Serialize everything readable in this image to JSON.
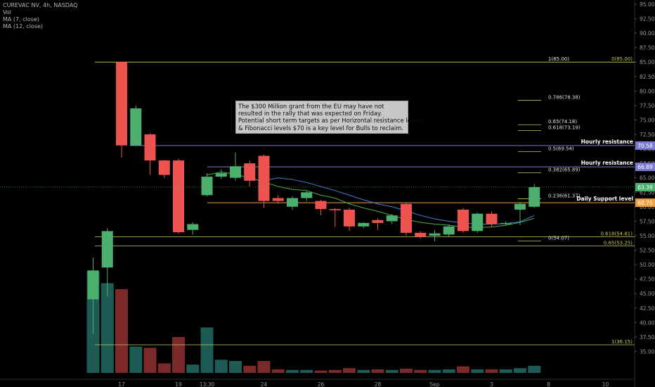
{
  "header": {
    "symbol_line": "CUREVAC NV, 4h, NASDAQ",
    "indicators": [
      "Vol",
      "MA (7, close)",
      "MA (12, close)"
    ]
  },
  "annotation": {
    "lines": [
      "The $300 Million grant from the EU may have not",
      "resulted in the rally that was expected on Friday.",
      "Potential short term targets as per Horizontal resistance levels",
      "& Fibonacci levels $70 is a key level for Bulls to reclaim."
    ]
  },
  "colors": {
    "up": "#4caf6e",
    "down": "#ef5350",
    "fib": "#c8c855",
    "resistance": "#7b7bd6",
    "support": "#f0a040",
    "ma7": "#4caf50",
    "ma12": "#4a7fd6",
    "vol_up": "#1e5b55",
    "vol_down": "#7a2a2a"
  },
  "chart_data": {
    "type": "candlestick",
    "y_axis": {
      "min": 32.5,
      "max": 95,
      "ticks": [
        "35.00",
        "37.50",
        "40.00",
        "42.50",
        "45.00",
        "47.50",
        "50.00",
        "52.50",
        "55.00",
        "57.50",
        "60.00",
        "62.50",
        "65.00",
        "67.50",
        "70.00",
        "72.50",
        "75.00",
        "77.50",
        "80.00",
        "82.50",
        "85.00",
        "87.50",
        "90.00",
        "92.50",
        "95.00"
      ]
    },
    "x_axis": {
      "labels": [
        {
          "label": "17",
          "bar": 2
        },
        {
          "label": "19",
          "bar": 6
        },
        {
          "label": "13:30",
          "bar": 8
        },
        {
          "label": "24",
          "bar": 12
        },
        {
          "label": "26",
          "bar": 16
        },
        {
          "label": "28",
          "bar": 20
        },
        {
          "label": "Sep",
          "bar": 24
        },
        {
          "label": "3",
          "bar": 28
        },
        {
          "label": "8",
          "bar": 32
        },
        {
          "label": "10",
          "bar": 36
        }
      ]
    },
    "candles": [
      {
        "o": 44.0,
        "h": 51.2,
        "l": 38.0,
        "c": 49.0
      },
      {
        "o": 49.5,
        "h": 56.3,
        "l": 44.5,
        "c": 55.8
      },
      {
        "o": 85.0,
        "h": 85.0,
        "l": 68.5,
        "c": 70.6
      },
      {
        "o": 70.6,
        "h": 77.5,
        "l": 70.5,
        "c": 77.0
      },
      {
        "o": 72.5,
        "h": 72.7,
        "l": 65.5,
        "c": 68.0
      },
      {
        "o": 68.0,
        "h": 68.1,
        "l": 65.0,
        "c": 65.5
      },
      {
        "o": 68.0,
        "h": 68.3,
        "l": 55.3,
        "c": 55.6
      },
      {
        "o": 56.0,
        "h": 57.3,
        "l": 55.2,
        "c": 57.0
      },
      {
        "o": 62.0,
        "h": 65.8,
        "l": 61.8,
        "c": 65.2
      },
      {
        "o": 65.2,
        "h": 66.5,
        "l": 64.8,
        "c": 65.8
      },
      {
        "o": 65.0,
        "h": 69.4,
        "l": 64.5,
        "c": 67.0
      },
      {
        "o": 67.5,
        "h": 68.0,
        "l": 63.5,
        "c": 64.5
      },
      {
        "o": 68.8,
        "h": 69.0,
        "l": 59.8,
        "c": 61.0
      },
      {
        "o": 61.5,
        "h": 62.0,
        "l": 60.5,
        "c": 61.0
      },
      {
        "o": 60.0,
        "h": 61.8,
        "l": 59.5,
        "c": 61.5
      },
      {
        "o": 61.5,
        "h": 62.8,
        "l": 61.0,
        "c": 62.5
      },
      {
        "o": 61.0,
        "h": 61.2,
        "l": 58.5,
        "c": 59.6
      },
      {
        "o": 59.6,
        "h": 59.8,
        "l": 56.5,
        "c": 59.4
      },
      {
        "o": 59.5,
        "h": 59.8,
        "l": 55.8,
        "c": 56.6
      },
      {
        "o": 56.6,
        "h": 57.3,
        "l": 56.3,
        "c": 57.2
      },
      {
        "o": 57.7,
        "h": 58.0,
        "l": 56.0,
        "c": 57.2
      },
      {
        "o": 57.5,
        "h": 58.8,
        "l": 57.0,
        "c": 58.5
      },
      {
        "o": 60.5,
        "h": 60.8,
        "l": 55.0,
        "c": 55.5
      },
      {
        "o": 55.5,
        "h": 55.8,
        "l": 54.5,
        "c": 54.8
      },
      {
        "o": 55.0,
        "h": 56.0,
        "l": 54.0,
        "c": 55.4
      },
      {
        "o": 55.2,
        "h": 57.0,
        "l": 54.8,
        "c": 56.6
      },
      {
        "o": 59.5,
        "h": 59.8,
        "l": 55.5,
        "c": 55.8
      },
      {
        "o": 55.8,
        "h": 59.0,
        "l": 55.5,
        "c": 58.8
      },
      {
        "o": 58.8,
        "h": 59.2,
        "l": 56.5,
        "c": 57.0
      },
      {
        "o": 57.0,
        "h": 57.5,
        "l": 56.8,
        "c": 57.2
      },
      {
        "o": 59.5,
        "h": 60.8,
        "l": 56.8,
        "c": 60.5
      },
      {
        "o": 60.0,
        "h": 64.0,
        "l": 59.8,
        "c": 63.4
      }
    ],
    "ma7": [
      null,
      null,
      null,
      null,
      null,
      null,
      null,
      null,
      65.5,
      66.0,
      65.6,
      65.0,
      64.3,
      63.5,
      63.0,
      62.8,
      62.0,
      61.5,
      60.5,
      59.8,
      59.2,
      58.5,
      57.8,
      57.3,
      57.0,
      56.8,
      56.5,
      56.4,
      56.5,
      56.8,
      57.3,
      58.0
    ],
    "ma12": [
      null,
      null,
      null,
      null,
      null,
      null,
      null,
      null,
      null,
      null,
      null,
      null,
      64.5,
      65.0,
      64.7,
      64.2,
      63.5,
      62.8,
      62.0,
      61.2,
      60.5,
      60.0,
      59.3,
      58.5,
      57.9,
      57.5,
      57.2,
      57.0,
      57.0,
      57.1,
      57.4,
      58.5
    ],
    "volume_relative": [
      0.85,
      0.75,
      0.7,
      0.22,
      0.21,
      0.08,
      0.3,
      0.07,
      0.38,
      0.11,
      0.1,
      0.06,
      0.1,
      0.03,
      0.025,
      0.025,
      0.02,
      0.025,
      0.04,
      0.025,
      0.03,
      0.025,
      0.035,
      0.025,
      0.025,
      0.03,
      0.055,
      0.03,
      0.03,
      0.03,
      0.04,
      0.06
    ],
    "fib_levels": [
      {
        "label": "1(85.00)",
        "value": 85.0
      },
      {
        "label": "0.786(78.38)",
        "value": 78.38
      },
      {
        "label": "0.65(74.18)",
        "value": 74.18
      },
      {
        "label": "0.618(73.19)",
        "value": 73.19
      },
      {
        "label": "0.5(69.54)",
        "value": 69.54
      },
      {
        "label": "0.382(65.89)",
        "value": 65.89
      },
      {
        "label": "0.236(61.37)",
        "value": 61.37
      },
      {
        "label": "0(54.07)",
        "value": 54.07
      }
    ],
    "fib_levels_2": [
      {
        "label": "0(85.00)",
        "value": 85.0
      },
      {
        "label": "0.618(54.81)",
        "value": 54.81
      },
      {
        "label": "0.65(53.25)",
        "value": 53.25
      },
      {
        "label": "1(36.15)",
        "value": 36.15
      }
    ],
    "horizontal_levels": [
      {
        "label": "Hourly resistance",
        "value": 70.58,
        "badge": "70.58",
        "kind": "resistance"
      },
      {
        "label": "Hourly resistance",
        "value": 66.89,
        "badge": "66.89",
        "kind": "resistance"
      },
      {
        "label": "Daily Support level",
        "value": 60.7,
        "badge": "60.70",
        "kind": "support"
      }
    ],
    "last_price": {
      "value": 63.39,
      "badge": "63.39"
    }
  }
}
